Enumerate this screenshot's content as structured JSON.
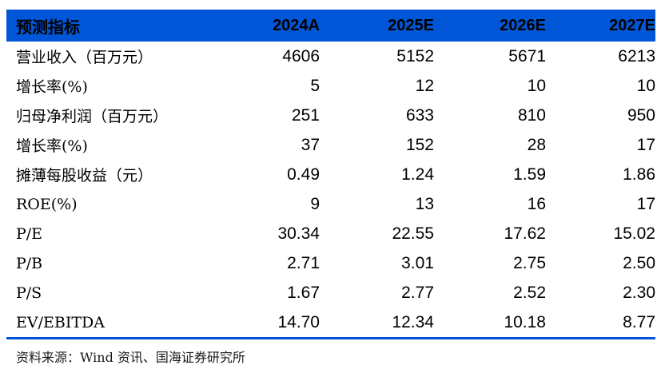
{
  "table": {
    "header": {
      "label": "预测指标",
      "columns": [
        "2024A",
        "2025E",
        "2026E",
        "2027E"
      ]
    },
    "rows": [
      {
        "label": "营业收入（百万元）",
        "values": [
          "4606",
          "5152",
          "5671",
          "6213"
        ]
      },
      {
        "label": "增长率(%)",
        "values": [
          "5",
          "12",
          "10",
          "10"
        ]
      },
      {
        "label": "归母净利润（百万元）",
        "values": [
          "251",
          "633",
          "810",
          "950"
        ]
      },
      {
        "label": "增长率(%)",
        "values": [
          "37",
          "152",
          "28",
          "17"
        ]
      },
      {
        "label": "摊薄每股收益（元）",
        "values": [
          "0.49",
          "1.24",
          "1.59",
          "1.86"
        ]
      },
      {
        "label": "ROE(%)",
        "values": [
          "9",
          "13",
          "16",
          "17"
        ]
      },
      {
        "label": "P/E",
        "values": [
          "30.34",
          "22.55",
          "17.62",
          "15.02"
        ]
      },
      {
        "label": "P/B",
        "values": [
          "2.71",
          "3.01",
          "2.75",
          "2.50"
        ]
      },
      {
        "label": "P/S",
        "values": [
          "1.67",
          "2.77",
          "2.52",
          "2.30"
        ]
      },
      {
        "label": "EV/EBITDA",
        "values": [
          "14.70",
          "12.34",
          "10.18",
          "8.77"
        ]
      }
    ]
  },
  "footer": {
    "source": "资料来源：Wind 资讯、国海证券研究所"
  },
  "colors": {
    "header_bg": "#0056d6",
    "header_text": "#ffffff",
    "body_text": "#000000",
    "rule_blue": "#0056d6"
  }
}
